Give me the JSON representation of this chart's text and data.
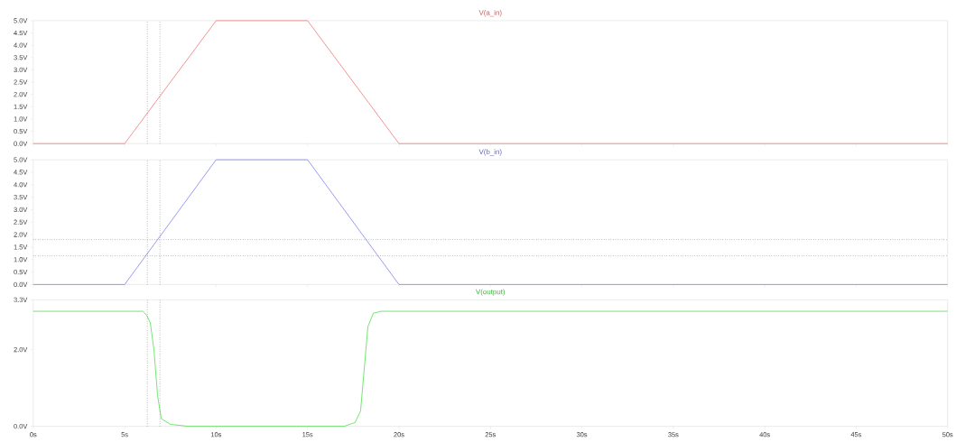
{
  "chart_data": [
    {
      "type": "line",
      "title": "V(a_in)",
      "tick_labels": "y",
      "xlim": [
        0,
        50
      ],
      "ylim": [
        0,
        5
      ],
      "marker": "none",
      "line_style": "solid",
      "xticks": [
        {
          "value": 0,
          "label": null
        },
        {
          "value": 5,
          "label": null
        },
        {
          "value": 10,
          "label": null
        },
        {
          "value": 15,
          "label": null
        },
        {
          "value": 20,
          "label": null
        },
        {
          "value": 25,
          "label": null
        },
        {
          "value": 30,
          "label": null
        },
        {
          "value": 35,
          "label": null
        },
        {
          "value": 40,
          "label": null
        },
        {
          "value": 45,
          "label": null
        },
        {
          "value": 50,
          "label": null
        }
      ],
      "yticks": [
        {
          "value": 0,
          "label": "0.0V"
        },
        {
          "value": 0.5,
          "label": "0.5V"
        },
        {
          "value": 1,
          "label": "1.0V"
        },
        {
          "value": 1.5,
          "label": "1.5V"
        },
        {
          "value": 2,
          "label": "2.0V"
        },
        {
          "value": 2.5,
          "label": "2.5V"
        },
        {
          "value": 3,
          "label": "3.0V"
        },
        {
          "value": 3.5,
          "label": "3.5V"
        },
        {
          "value": 4,
          "label": "4.0V"
        },
        {
          "value": 4.5,
          "label": "4.5V"
        },
        {
          "value": 5,
          "label": "5.0V"
        }
      ],
      "series": [
        {
          "color": "#f07878",
          "x": [
            0,
            5,
            10,
            15,
            20,
            50
          ],
          "values": [
            0,
            0,
            5,
            5,
            0,
            0
          ]
        }
      ],
      "ref_lines": [
        {
          "axis": "x",
          "value": 6.24,
          "line_style": "dotted"
        },
        {
          "axis": "x",
          "value": 6.93,
          "line_style": "dotted"
        }
      ]
    },
    {
      "type": "line",
      "title": "V(b_in)",
      "tick_labels": "y",
      "xlim": [
        0,
        50
      ],
      "ylim": [
        0,
        5
      ],
      "marker": "none",
      "line_style": "solid",
      "xticks": [
        {
          "value": 0,
          "label": null
        },
        {
          "value": 5,
          "label": null
        },
        {
          "value": 10,
          "label": null
        },
        {
          "value": 15,
          "label": null
        },
        {
          "value": 20,
          "label": null
        },
        {
          "value": 25,
          "label": null
        },
        {
          "value": 30,
          "label": null
        },
        {
          "value": 35,
          "label": null
        },
        {
          "value": 40,
          "label": null
        },
        {
          "value": 45,
          "label": null
        },
        {
          "value": 50,
          "label": null
        }
      ],
      "yticks": [
        {
          "value": 0,
          "label": "0.0V"
        },
        {
          "value": 0.5,
          "label": "0.5V"
        },
        {
          "value": 1,
          "label": "1.0V"
        },
        {
          "value": 1.5,
          "label": "1.5V"
        },
        {
          "value": 2,
          "label": "2.0V"
        },
        {
          "value": 2.5,
          "label": "2.5V"
        },
        {
          "value": 3,
          "label": "3.0V"
        },
        {
          "value": 3.5,
          "label": "3.5V"
        },
        {
          "value": 4,
          "label": "4.0V"
        },
        {
          "value": 4.5,
          "label": "4.5V"
        },
        {
          "value": 5,
          "label": "5.0V"
        }
      ],
      "series": [
        {
          "color": "#8080f0",
          "x": [
            0,
            5,
            10,
            15,
            20,
            50
          ],
          "values": [
            0,
            0,
            5,
            5,
            0,
            0
          ]
        }
      ],
      "ref_lines": [
        {
          "axis": "x",
          "value": 6.24,
          "line_style": "dotted"
        },
        {
          "axis": "x",
          "value": 6.93,
          "line_style": "dotted"
        },
        {
          "axis": "y",
          "value": 1.8,
          "line_style": "dotted"
        },
        {
          "axis": "y",
          "value": 1.15,
          "line_style": "dotted"
        }
      ]
    },
    {
      "type": "line",
      "title": "V(output)",
      "xlim": [
        0,
        50
      ],
      "ylim": [
        0,
        3.3
      ],
      "marker": "none",
      "line_style": "solid",
      "xticks": [
        {
          "value": 0,
          "label": "0s"
        },
        {
          "value": 5,
          "label": "5s"
        },
        {
          "value": 10,
          "label": "10s"
        },
        {
          "value": 15,
          "label": "15s"
        },
        {
          "value": 20,
          "label": "20s"
        },
        {
          "value": 25,
          "label": "25s"
        },
        {
          "value": 30,
          "label": "30s"
        },
        {
          "value": 35,
          "label": "35s"
        },
        {
          "value": 40,
          "label": "40s"
        },
        {
          "value": 45,
          "label": "45s"
        },
        {
          "value": 50,
          "label": "50s"
        }
      ],
      "yticks": [
        {
          "value": 0,
          "label": "0.0V"
        },
        {
          "value": 2,
          "label": "2.0V"
        },
        {
          "value": 3.3,
          "label": "3.3V"
        }
      ],
      "series": [
        {
          "color": "#50e050",
          "x": [
            0,
            6.0,
            6.2,
            6.4,
            6.6,
            6.8,
            7.0,
            7.5,
            8.5,
            17.0,
            17.6,
            17.9,
            18.1,
            18.3,
            18.6,
            19.0,
            50
          ],
          "values": [
            3.0,
            3.0,
            2.9,
            2.7,
            2.0,
            0.8,
            0.2,
            0.05,
            0,
            0,
            0.1,
            0.4,
            1.5,
            2.6,
            2.95,
            3.0,
            3.0
          ]
        }
      ],
      "ref_lines": [
        {
          "axis": "x",
          "value": 6.24,
          "line_style": "dotted"
        },
        {
          "axis": "x",
          "value": 6.93,
          "line_style": "dotted"
        }
      ]
    }
  ]
}
